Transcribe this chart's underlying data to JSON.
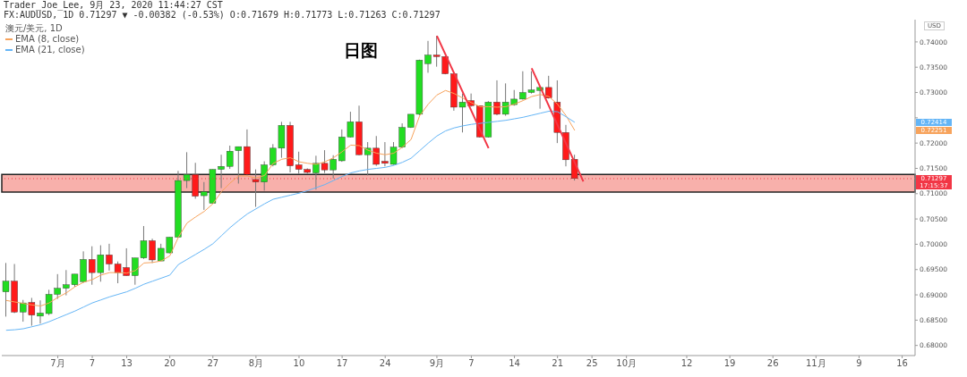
{
  "chart_data": {
    "type": "candlestick",
    "title": "日图",
    "ylabel": "USD",
    "legend_title": "澳元/美元, 1D",
    "legend": "top left",
    "annotations": [
      "Trader_Joe_Lee, 9月 23, 2020 11:44:27 CST",
      "FX:AUDUSD, 1D 0.71297 ▼ -0.00382 (-0.53%) O:0.71679 H:0.71773 L:0.71263 C:0.71297",
      "0.72414",
      "0.72251",
      "17:15:37"
    ],
    "categories": [
      null,
      null,
      null,
      null,
      null,
      null,
      "7月",
      null,
      null,
      null,
      "7",
      null,
      null,
      null,
      "13",
      null,
      null,
      null,
      null,
      "20",
      null,
      null,
      null,
      null,
      "27",
      null,
      null,
      null,
      null,
      "8月",
      null,
      null,
      null,
      null,
      "10",
      null,
      null,
      null,
      null,
      "17",
      null,
      null,
      null,
      null,
      "24",
      null,
      null,
      null,
      null,
      null,
      "9月",
      null,
      null,
      null,
      "7",
      null,
      null,
      null,
      null,
      "14",
      null,
      null,
      null,
      null,
      "21",
      null,
      null,
      null,
      "25",
      null,
      null,
      null,
      "10月",
      null,
      null,
      null,
      null,
      null,
      null,
      "12",
      null,
      null,
      null,
      null,
      "19",
      null,
      null,
      null,
      null,
      "26",
      null,
      null,
      null,
      null,
      "11月",
      null,
      null,
      null,
      null,
      "9",
      null,
      null,
      null,
      null,
      "16",
      null
    ],
    "ohlc": [
      [
        0.6906,
        0.6963,
        0.6857,
        0.6927
      ],
      [
        0.6927,
        0.6961,
        0.6864,
        0.6866
      ],
      [
        0.6866,
        0.689,
        0.6847,
        0.6884
      ],
      [
        0.6885,
        0.6894,
        0.6839,
        0.686
      ],
      [
        0.6858,
        0.6889,
        0.6843,
        0.6864
      ],
      [
        0.6863,
        0.691,
        0.686,
        0.6901
      ],
      [
        0.6901,
        0.6941,
        0.6892,
        0.6913
      ],
      [
        0.6913,
        0.6949,
        0.6899,
        0.692
      ],
      [
        0.692,
        0.6941,
        0.6916,
        0.6941
      ],
      [
        0.6926,
        0.6986,
        0.6924,
        0.697
      ],
      [
        0.697,
        0.6996,
        0.692,
        0.6944
      ],
      [
        0.6944,
        0.6998,
        0.6926,
        0.6979
      ],
      [
        0.6979,
        0.7001,
        0.6948,
        0.6961
      ],
      [
        0.6961,
        0.6966,
        0.6923,
        0.6944
      ],
      [
        0.6954,
        0.6992,
        0.6938,
        0.6938
      ],
      [
        0.6938,
        0.6973,
        0.692,
        0.6973
      ],
      [
        0.6973,
        0.7036,
        0.6971,
        0.7007
      ],
      [
        0.7007,
        0.7011,
        0.6963,
        0.6969
      ],
      [
        0.6967,
        0.7001,
        0.6967,
        0.6992
      ],
      [
        0.6983,
        0.7014,
        0.6982,
        0.7014
      ],
      [
        0.7014,
        0.7145,
        0.7014,
        0.7126
      ],
      [
        0.7126,
        0.7182,
        0.7111,
        0.7138
      ],
      [
        0.7138,
        0.7161,
        0.709,
        0.7095
      ],
      [
        0.7096,
        0.7123,
        0.7068,
        0.7104
      ],
      [
        0.7081,
        0.7148,
        0.708,
        0.7148
      ],
      [
        0.7148,
        0.7177,
        0.7111,
        0.7154
      ],
      [
        0.7154,
        0.7195,
        0.7149,
        0.7184
      ],
      [
        0.7185,
        0.7193,
        0.712,
        0.7193
      ],
      [
        0.7193,
        0.7227,
        0.7136,
        0.7138
      ],
      [
        0.7128,
        0.7148,
        0.7074,
        0.7123
      ],
      [
        0.7123,
        0.7164,
        0.7106,
        0.7157
      ],
      [
        0.7157,
        0.7198,
        0.7154,
        0.719
      ],
      [
        0.719,
        0.7242,
        0.7171,
        0.7235
      ],
      [
        0.7235,
        0.7242,
        0.7142,
        0.7155
      ],
      [
        0.7157,
        0.7183,
        0.7139,
        0.7148
      ],
      [
        0.7148,
        0.715,
        0.714,
        0.7142
      ],
      [
        0.7141,
        0.7175,
        0.7108,
        0.716
      ],
      [
        0.716,
        0.7186,
        0.7141,
        0.7147
      ],
      [
        0.7147,
        0.7176,
        0.713,
        0.7168
      ],
      [
        0.7165,
        0.7227,
        0.7163,
        0.7212
      ],
      [
        0.7212,
        0.7262,
        0.7211,
        0.7242
      ],
      [
        0.7242,
        0.7274,
        0.7176,
        0.7177
      ],
      [
        0.7177,
        0.7202,
        0.7136,
        0.719
      ],
      [
        0.719,
        0.7214,
        0.7155,
        0.7158
      ],
      [
        0.7164,
        0.7202,
        0.7154,
        0.716
      ],
      [
        0.7158,
        0.7202,
        0.7157,
        0.7192
      ],
      [
        0.7192,
        0.7239,
        0.719,
        0.7231
      ],
      [
        0.7231,
        0.7257,
        0.723,
        0.7257
      ],
      [
        0.7257,
        0.7365,
        0.7255,
        0.7364
      ],
      [
        0.7357,
        0.7402,
        0.7339,
        0.7374
      ],
      [
        0.7374,
        0.7412,
        0.7351,
        0.7371
      ],
      [
        0.7371,
        0.7372,
        0.7336,
        0.7337
      ],
      [
        0.7337,
        0.7339,
        0.7264,
        0.7271
      ],
      [
        0.7271,
        0.7298,
        0.7221,
        0.7281
      ],
      [
        0.7284,
        0.7298,
        0.7272,
        0.7274
      ],
      [
        0.7274,
        0.7274,
        0.7211,
        0.7212
      ],
      [
        0.7212,
        0.7283,
        0.7211,
        0.7281
      ],
      [
        0.7281,
        0.7324,
        0.7255,
        0.7257
      ],
      [
        0.7257,
        0.7318,
        0.7254,
        0.7281
      ],
      [
        0.7276,
        0.7305,
        0.7274,
        0.7287
      ],
      [
        0.7287,
        0.7342,
        0.7286,
        0.73
      ],
      [
        0.73,
        0.7342,
        0.7298,
        0.7305
      ],
      [
        0.7304,
        0.7312,
        0.7268,
        0.731
      ],
      [
        0.731,
        0.7333,
        0.7288,
        0.7289
      ],
      [
        0.7281,
        0.7324,
        0.72,
        0.7221
      ],
      [
        0.7221,
        0.7236,
        0.7154,
        0.7167
      ],
      [
        0.7168,
        0.7177,
        0.7126,
        0.713
      ],
      null,
      null,
      null,
      null,
      null,
      null,
      null,
      null,
      null,
      null,
      null,
      null,
      null,
      null,
      null,
      null,
      null,
      null,
      null,
      null,
      null,
      null,
      null,
      null,
      null,
      null,
      null,
      null,
      null,
      null,
      null,
      null,
      null,
      null,
      null,
      null,
      null,
      null,
      null
    ],
    "colors": [
      "#22dd22",
      "#ff1a1a",
      "#22dd22",
      "#ff1a1a",
      "#22dd22",
      "#22dd22",
      "#22dd22",
      "#22dd22",
      "#22dd22",
      "#22dd22",
      "#ff1a1a",
      "#22dd22",
      "#ff1a1a",
      "#ff1a1a",
      "#ff1a1a",
      "#22dd22",
      "#22dd22",
      "#ff1a1a",
      "#22dd22",
      "#22dd22",
      "#22dd22",
      "#22dd22",
      "#ff1a1a",
      "#22dd22",
      "#22dd22",
      "#22dd22",
      "#22dd22",
      "#22dd22",
      "#ff1a1a",
      "#ff1a1a",
      "#22dd22",
      "#22dd22",
      "#22dd22",
      "#ff1a1a",
      "#ff1a1a",
      "#ff1a1a",
      "#22dd22",
      "#ff1a1a",
      "#22dd22",
      "#22dd22",
      "#22dd22",
      "#ff1a1a",
      "#22dd22",
      "#ff1a1a",
      "#ff1a1a",
      "#22dd22",
      "#22dd22",
      "#22dd22",
      "#22dd22",
      "#22dd22",
      "#ff1a1a",
      "#ff1a1a",
      "#ff1a1a",
      "#22dd22",
      "#ff1a1a",
      "#ff1a1a",
      "#22dd22",
      "#ff1a1a",
      "#22dd22",
      "#22dd22",
      "#22dd22",
      "#22dd22",
      "#22dd22",
      "#ff1a1a",
      "#ff1a1a",
      "#ff1a1a",
      "#ff1a1a",
      null,
      null,
      null,
      null,
      null,
      null,
      null,
      null,
      null,
      null,
      null,
      null,
      null,
      null,
      null,
      null,
      null,
      null,
      null,
      null,
      null,
      null,
      null,
      null,
      null,
      null,
      null,
      null,
      null,
      null,
      null,
      null,
      null,
      null,
      null,
      null,
      null,
      null,
      null
    ],
    "series": [
      {
        "name": "EMA (8, close)",
        "type": "line",
        "color": "#f7a35c",
        "values": [
          0.6889,
          0.6886,
          0.6883,
          0.688,
          0.6878,
          0.6884,
          0.6895,
          0.6904,
          0.6916,
          0.6925,
          0.693,
          0.6939,
          0.6944,
          0.6944,
          0.6943,
          0.6948,
          0.6963,
          0.6964,
          0.6967,
          0.6977,
          0.7014,
          0.7042,
          0.7054,
          0.7065,
          0.708,
          0.7104,
          0.7121,
          0.7135,
          0.7135,
          0.7131,
          0.7136,
          0.716,
          0.7168,
          0.7171,
          0.7163,
          0.716,
          0.7158,
          0.7163,
          0.7171,
          0.7183,
          0.7196,
          0.7195,
          0.7186,
          0.718,
          0.7177,
          0.718,
          0.7192,
          0.7207,
          0.7254,
          0.7277,
          0.7295,
          0.7304,
          0.7298,
          0.7289,
          0.728,
          0.7272,
          0.7272,
          0.7271,
          0.7272,
          0.7277,
          0.7284,
          0.7292,
          0.7296,
          0.7292,
          0.7277,
          0.7254,
          0.7225,
          null,
          null,
          null,
          null,
          null,
          null,
          null,
          null,
          null,
          null,
          null,
          null,
          null,
          null,
          null,
          null,
          null,
          null,
          null,
          null,
          null,
          null,
          null,
          null,
          null,
          null,
          null,
          null,
          null,
          null,
          null,
          null,
          null,
          null,
          null,
          null,
          null,
          null,
          null
        ]
      },
      {
        "name": "EMA (21, close)",
        "type": "line",
        "color": "#64b5f6",
        "values": [
          0.683,
          0.6831,
          0.6833,
          0.6837,
          0.6841,
          0.6847,
          0.6854,
          0.6861,
          0.6868,
          0.6876,
          0.6884,
          0.689,
          0.6896,
          0.6901,
          0.6906,
          0.6913,
          0.6921,
          0.6927,
          0.6933,
          0.6939,
          0.696,
          0.697,
          0.698,
          0.699,
          0.7001,
          0.7017,
          0.7033,
          0.7047,
          0.706,
          0.707,
          0.708,
          0.7089,
          0.7093,
          0.7097,
          0.7101,
          0.7106,
          0.7112,
          0.7118,
          0.7126,
          0.7134,
          0.7141,
          0.7145,
          0.7148,
          0.715,
          0.7152,
          0.7156,
          0.7162,
          0.717,
          0.7185,
          0.72,
          0.7214,
          0.7224,
          0.723,
          0.7234,
          0.7237,
          0.7239,
          0.7241,
          0.7243,
          0.7245,
          0.7248,
          0.7251,
          0.7255,
          0.7259,
          0.7263,
          0.7262,
          0.7252,
          0.7241,
          null,
          null,
          null,
          null,
          null,
          null,
          null,
          null,
          null,
          null,
          null,
          null,
          null,
          null,
          null,
          null,
          null,
          null,
          null,
          null,
          null,
          null,
          null,
          null,
          null,
          null,
          null,
          null,
          null,
          null,
          null,
          null,
          null,
          null,
          null,
          null,
          null,
          null,
          null
        ]
      },
      {
        "type": "line",
        "color": "#f23645",
        "values": [
          null,
          null,
          null,
          null,
          null,
          null,
          null,
          null,
          null,
          null,
          null,
          null,
          null,
          null,
          null,
          null,
          null,
          null,
          null,
          null,
          null,
          null,
          null,
          null,
          null,
          null,
          null,
          null,
          null,
          null,
          null,
          null,
          null,
          null,
          null,
          null,
          null,
          null,
          null,
          null,
          null,
          null,
          null,
          null,
          null,
          null,
          null,
          null,
          null,
          null,
          0.7412,
          null,
          null,
          null,
          null,
          null,
          0.719,
          null,
          null,
          null,
          null,
          null,
          null,
          null,
          null,
          null,
          null,
          null,
          null,
          null,
          null,
          null,
          null,
          null,
          null,
          null,
          null,
          null,
          null,
          null,
          null,
          null,
          null,
          null,
          null,
          null,
          null,
          null,
          null,
          null,
          null,
          null,
          null,
          null,
          null,
          null,
          null,
          null,
          null,
          null,
          null,
          null,
          null,
          null,
          null,
          null
        ]
      },
      {
        "type": "line",
        "color": "#f23645",
        "values": [
          null,
          null,
          null,
          null,
          null,
          null,
          null,
          null,
          null,
          null,
          null,
          null,
          null,
          null,
          null,
          null,
          null,
          null,
          null,
          null,
          null,
          null,
          null,
          null,
          null,
          null,
          null,
          null,
          null,
          null,
          null,
          null,
          null,
          null,
          null,
          null,
          null,
          null,
          null,
          null,
          null,
          null,
          null,
          null,
          null,
          null,
          null,
          null,
          null,
          null,
          null,
          null,
          null,
          null,
          null,
          null,
          null,
          null,
          null,
          null,
          null,
          0.7348,
          null,
          null,
          null,
          null,
          null,
          0.7124,
          null,
          null,
          null,
          null,
          null,
          null,
          null,
          null,
          null,
          null,
          null,
          null,
          null,
          null,
          null,
          null,
          null,
          null,
          null,
          null,
          null,
          null,
          null,
          null,
          null,
          null,
          null,
          null,
          null,
          null,
          null,
          null,
          null,
          null,
          null,
          null,
          null,
          null
        ]
      }
    ],
    "ylim": [
      0.678,
      0.7444
    ],
    "yticks": [
      {
        "value": 0.68,
        "label": "0.68000"
      },
      {
        "value": 0.685,
        "label": "0.68500"
      },
      {
        "value": 0.69,
        "label": "0.69000"
      },
      {
        "value": 0.695,
        "label": "0.69500"
      },
      {
        "value": 0.7,
        "label": "0.70000"
      },
      {
        "value": 0.705,
        "label": "0.70500"
      },
      {
        "value": 0.71,
        "label": "0.71000"
      },
      {
        "value": 0.715,
        "label": "0.71500"
      },
      {
        "value": 0.72,
        "label": "0.72000"
      },
      {
        "value": 0.725,
        "label": null
      },
      {
        "value": 0.73,
        "label": "0.73000"
      },
      {
        "value": 0.735,
        "label": "0.73500"
      },
      {
        "value": 0.74,
        "label": "0.74000"
      }
    ],
    "ref_lines": [
      {
        "axis": "y",
        "value": 0.71297,
        "label": "0.71297",
        "color": "#f23645",
        "line_style": "dotted"
      }
    ],
    "bands": [
      {
        "axis": "y",
        "from": 0.7103,
        "to": 0.7138,
        "color": "#f7a29c"
      }
    ]
  }
}
